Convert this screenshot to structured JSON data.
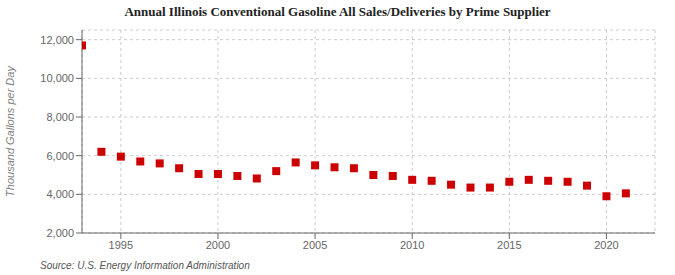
{
  "chart_data": {
    "type": "scatter",
    "title": "Annual Illinois Conventional Gasoline All Sales/Deliveries by Prime Supplier",
    "ylabel": "Thousand Gallons per Day",
    "annotations": [
      "Source: U.S. Energy Information Administration"
    ],
    "color": "#cc0000",
    "marker": "square",
    "grid": true,
    "x": [
      1993,
      1994,
      1995,
      1996,
      1997,
      1998,
      1999,
      2000,
      2001,
      2002,
      2003,
      2004,
      2005,
      2006,
      2007,
      2008,
      2009,
      2010,
      2011,
      2012,
      2013,
      2014,
      2015,
      2016,
      2017,
      2018,
      2019,
      2020,
      2021
    ],
    "values": [
      11700,
      6200,
      5950,
      5700,
      5600,
      5350,
      5050,
      5050,
      4950,
      4820,
      5200,
      5650,
      5500,
      5400,
      5350,
      5000,
      4950,
      4750,
      4700,
      4500,
      4350,
      4350,
      4650,
      4750,
      4700,
      4650,
      4450,
      3900,
      4050
    ],
    "xlim": [
      1993.0,
      2022.5
    ],
    "ylim": [
      2000,
      12500
    ],
    "xticks": [
      1995,
      2000,
      2005,
      2010,
      2015,
      2020
    ],
    "yticks": [
      {
        "value": 2000,
        "label": "2,000"
      },
      {
        "value": 4000,
        "label": "4,000"
      },
      {
        "value": 6000,
        "label": "6,000"
      },
      {
        "value": 8000,
        "label": "8,000"
      },
      {
        "value": 10000,
        "label": "10,000"
      },
      {
        "value": 12000,
        "label": "12,000"
      }
    ]
  }
}
